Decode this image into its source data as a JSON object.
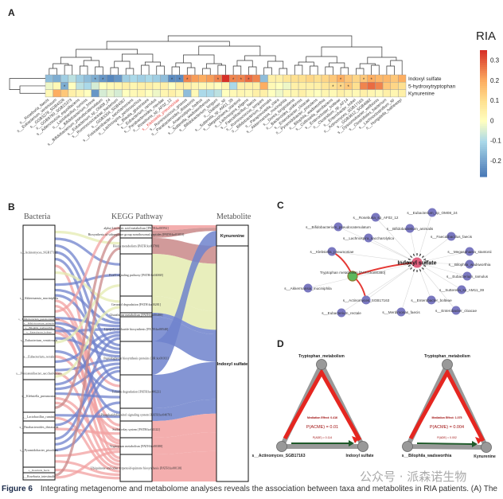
{
  "panels": {
    "a": "A",
    "b": "B",
    "c": "C",
    "d": "D"
  },
  "heatmap": {
    "legend_title": "RIA",
    "scale_ticks": [
      "0.3",
      "0.2",
      "0.1",
      "0",
      "-0.1",
      "-0.2"
    ],
    "scale_tick_values": [
      0.3,
      0.2,
      0.1,
      0,
      -0.1,
      -0.2
    ],
    "scale_range": [
      -0.28,
      0.35
    ],
    "rows": [
      "Indoxyl sulfate",
      "5-hydroxytryptophan",
      "Kynurenine"
    ],
    "highlight_column": "s__Klebsiella_pneumoniae",
    "highlight_color": "#e8413c",
    "columns": [
      "s__Roseburia_faecis",
      "s__Eubacterium_ventriosum",
      "s__GGB3278_SGB4328",
      "s__GGB9760_SGB15373",
      "s__Adlercreutzia_equolifaciens",
      "s__Lactobacillus_ruminis",
      "s__Bifidobacterium_breve",
      "s__Bifidobacterium_pseudocatenulatum",
      "s__Eubacterium_sp_OM08_24",
      "s__Ruminococcaceae_bacterium",
      "s__GGB3304_SGB4367",
      "s__Fusicatenibacter_saccharivorans",
      "s__Lachnospira_pectinoschiza",
      "s__Blautia_glucerasea",
      "s__Eubacterium_ramulus",
      "s__Parabacteroides_merdae",
      "s__Roseburia_sp_AF02_12",
      "s__Klebsiella_pneumoniae",
      "s__Ruminococcus_gnavus",
      "s__Parabacteroides_distasonis",
      "s__Anaerostipes_hadrus",
      "s__Sutterella_wadsworthensis",
      "s__Bifidobacterium_longum",
      "s__Dialister_sp",
      "s__Sutterella_sp_AM11_39",
      "s__Megasphaera_stantonii",
      "s__Lachnospira_eligens",
      "s__Faecalibacillus_faecis",
      "s__Ruminococcus_torques",
      "s__Bifidobacterium_animalis",
      "s__Paraprevotella_clara",
      "s__Akkermansia_muciniphila",
      "s__Dorea_longicatena",
      "s__Bacteroides_uniformis",
      "s__Enterobacter_cloacae",
      "s__Pyramidobacter_piscolens",
      "s__Bilophila_wadsworthia",
      "s__Collinsella_aerofaciens",
      "s__Enterocloster_bolteae",
      "s__Clostridium_sp_AF14",
      "s__Enterobacter_kobei",
      "s__Actinomyces_SGB17163",
      "s__GGB3612_SGB4882",
      "s__Dysosmobacter_welbionis",
      "s__Clostridiales_bacterium",
      "s__Lachnoclostridium_sp",
      "s__Hungatella_hathewayi"
    ],
    "values": [
      [
        -0.15,
        -0.18,
        -0.12,
        -0.08,
        -0.12,
        -0.15,
        -0.18,
        -0.22,
        -0.25,
        -0.22,
        -0.12,
        -0.1,
        -0.12,
        -0.1,
        -0.12,
        -0.15,
        -0.24,
        -0.24,
        0.25,
        0.22,
        0.2,
        0.22,
        0.25,
        0.35,
        0.25,
        0.25,
        0.28,
        0.25,
        -0.15,
        0.05,
        0.05,
        0.08,
        0.1,
        0.1,
        0.12,
        0.1,
        0.12,
        0.15,
        0.2,
        0.15,
        0.12,
        0.15,
        0.2,
        0.18,
        0.18,
        0.15,
        0.2
      ],
      [
        -0.02,
        0.02,
        -0.18,
        0,
        -0.08,
        -0.1,
        -0.05,
        0,
        0.02,
        0.03,
        0.05,
        0.03,
        0.05,
        0.05,
        0.03,
        0.05,
        0,
        0.05,
        0.05,
        0.03,
        0.02,
        0.02,
        0,
        0.03,
        -0.1,
        0.05,
        0.05,
        0.05,
        0.2,
        0.02,
        0,
        -0.02,
        0.05,
        0.05,
        0.05,
        0.05,
        0.08,
        0.1,
        0.12,
        0.15,
        0.1,
        0.25,
        0.28,
        0.25,
        0.15,
        0.12,
        0.1
      ],
      [
        0.02,
        0.2,
        0.15,
        0.05,
        0.03,
        0,
        -0.22,
        -0.05,
        -0.03,
        -0.05,
        0,
        0.02,
        0.03,
        0,
        -0.02,
        0.03,
        0.05,
        0.02,
        -0.15,
        0.02,
        -0.1,
        -0.1,
        -0.08,
        0,
        0.02,
        0.03,
        0.02,
        0.05,
        0.05,
        0,
        -0.02,
        0.02,
        0.03,
        0.05,
        0.02,
        0,
        0.03,
        0.02,
        0.05,
        0.03,
        0.02,
        0.05,
        0.03,
        0.02,
        0.05,
        0.03,
        0.05
      ]
    ],
    "stars": [
      [
        6,
        7,
        16,
        17,
        18,
        22,
        24,
        25,
        26,
        38,
        41,
        42
      ],
      [
        2,
        37,
        38,
        39
      ],
      []
    ],
    "star_symbol": "*"
  },
  "sankey": {
    "headers": {
      "bacteria": "Bacteria",
      "pathway": "KEGG Pathway",
      "metabolite": "Metabolite"
    },
    "bacteria": [
      "s__Actinomyces_SGB17163",
      "s__Akkermansia_muciniphila",
      "s__Bifidobacterium_pseudocatenulatum",
      "s__Bifidobacterium_animalis",
      "s__Bilophila_wadsworthia",
      "s__Enterobacter_bolteae",
      "s__Eubacterium_ventriosum",
      "s__Eubacterium_rectale",
      "s__Fusicatenibacter_saccharivorans",
      "s__Klebsiella_pneumoniae",
      "s__Lactobacillus_ruminis",
      "s__Parabacteroides_distasonis",
      "s__Pyramidobacter_piscolens",
      "s__Roseburia_faecis",
      "s__Roseburia_intestinalis"
    ],
    "pathways": [
      "alpha-Linolenic acid metabolism [PATH:ko00592]",
      "Biosynthesis of siderophore group nonribosomal peptides [PATH:ko01053]",
      "Biotin metabolism [PATH:ko00780]",
      "FoxO signaling pathway [PATH:ko04068]",
      "Geraniol degradation [PATH:ko00281]",
      "Glutathione metabolism [PATH:ko00480]",
      "Lipopolysaccharide biosynthesis [PATH:ko00540]",
      "Peptidoglycan biosynthesis proteins [BR:ko01011]",
      "Toluene degradation [PATH:ko00623]",
      "Phosphatidylinositol signaling system [PATH:ko04070]",
      "Sulfur relay system [PATH:ko04122]",
      "Tryptophan metabolism [PATH:ko00380]",
      "Ubiquinone and other terpenoid-quinone biosynthesis [PATH:ko00130]"
    ],
    "metabolites": [
      "Kynurenine",
      "Indoxyl sulfate"
    ],
    "colors": {
      "r": "#f2a0a0",
      "d": "#c98888",
      "b": "#6f82cc",
      "y": "#e4ebb0"
    },
    "pathway_flows": [
      [
        0,
        0,
        "r"
      ],
      [
        1,
        0,
        "d"
      ],
      [
        2,
        1,
        "d"
      ],
      [
        3,
        1,
        "y"
      ],
      [
        4,
        1,
        "y"
      ],
      [
        5,
        1,
        "b"
      ],
      [
        6,
        1,
        "b"
      ],
      [
        7,
        0,
        "b"
      ],
      [
        8,
        1,
        "b"
      ],
      [
        9,
        1,
        "b"
      ],
      [
        10,
        1,
        "r"
      ],
      [
        11,
        1,
        "r"
      ],
      [
        12,
        1,
        "r"
      ]
    ],
    "links": [
      [
        0,
        2,
        "y"
      ],
      [
        0,
        3,
        "b"
      ],
      [
        0,
        6,
        "b"
      ],
      [
        0,
        7,
        "b"
      ],
      [
        0,
        8,
        "b"
      ],
      [
        0,
        12,
        "r"
      ],
      [
        0,
        4,
        "y"
      ],
      [
        1,
        3,
        "b"
      ],
      [
        1,
        6,
        "b"
      ],
      [
        1,
        7,
        "b"
      ],
      [
        1,
        10,
        "r"
      ],
      [
        1,
        11,
        "r"
      ],
      [
        1,
        0,
        "r"
      ],
      [
        2,
        6,
        "b"
      ],
      [
        2,
        8,
        "r"
      ],
      [
        3,
        7,
        "b"
      ],
      [
        4,
        9,
        "b"
      ],
      [
        4,
        12,
        "r"
      ],
      [
        5,
        6,
        "b"
      ],
      [
        5,
        11,
        "r"
      ],
      [
        6,
        7,
        "b"
      ],
      [
        6,
        3,
        "y"
      ],
      [
        7,
        8,
        "b"
      ],
      [
        7,
        10,
        "r"
      ],
      [
        7,
        6,
        "b"
      ],
      [
        8,
        7,
        "b"
      ],
      [
        8,
        12,
        "r"
      ],
      [
        8,
        4,
        "y"
      ],
      [
        9,
        6,
        "b"
      ],
      [
        9,
        7,
        "b"
      ],
      [
        9,
        8,
        "b"
      ],
      [
        9,
        11,
        "r"
      ],
      [
        9,
        12,
        "r"
      ],
      [
        9,
        1,
        "d"
      ],
      [
        10,
        9,
        "b"
      ],
      [
        10,
        12,
        "r"
      ],
      [
        11,
        7,
        "b"
      ],
      [
        11,
        10,
        "r"
      ],
      [
        12,
        6,
        "b"
      ],
      [
        12,
        7,
        "b"
      ],
      [
        12,
        8,
        "b"
      ],
      [
        12,
        11,
        "r"
      ],
      [
        12,
        12,
        "r"
      ],
      [
        13,
        12,
        "r"
      ],
      [
        14,
        2,
        "d"
      ],
      [
        14,
        11,
        "r"
      ]
    ]
  },
  "network": {
    "metabolite": "Indoxyl sulfate",
    "pathway": "Tryptophan metabolism [PATH:ko00380]",
    "bacteria": [
      "s__Eubacterium_sp_OM08_24",
      "s__Roseburia_sp_AF02_12",
      "s__Bifidobacterium_pseudocatenulatum",
      "s__Bifidobacterium_animalis",
      "s__Lachnospira_saccharolytica",
      "s__Faecalibacillus_faecis",
      "s__Klebsiella_pneumoniae",
      "s__Megasphaera_stantonii",
      "s__Bilophila_wadsworthia",
      "s__Eubacterium_ramulus",
      "s__Akkermansia_muciniphila",
      "s__Sutterella_sp_AM11_39",
      "s__Actinomyces_SGB17163",
      "s__Enterobacter_bolteae",
      "s__Eubacterium_rectale",
      "s__Merdimonas_faecis",
      "s__Enterobacter_cloacae"
    ],
    "colors": {
      "bacteria": "#7a78c0",
      "metabolite": "#e0607e",
      "pathway": "#5cb85c",
      "mediation": "#e53935"
    }
  },
  "mediation": [
    {
      "top": "Tryptophan_metabolism",
      "left": "s__Actinomyces_SGB17163",
      "right": "Indoxyl sulfate",
      "effect": "Mediation Effect: 0.416",
      "p_acme": "P(ACME) = 0.01",
      "p_ade": "P(ADE) = 0.114"
    },
    {
      "top": "Tryptophan_metabolism",
      "left": "s__Bilophila_wadsworthia",
      "right": "Kynurenine",
      "effect": "Mediation Effect: 1.075",
      "p_acme": "P(ACME) = 0.004",
      "p_ade": "P(ADE) = 0.002"
    }
  ],
  "caption": {
    "label": "Figure 6",
    "text": "Integrating metagenome and metabolome analyses reveals the association between taxa and metabolites in RIA patients. (A) The"
  },
  "watermark": "公众号 · 派森诺生物"
}
